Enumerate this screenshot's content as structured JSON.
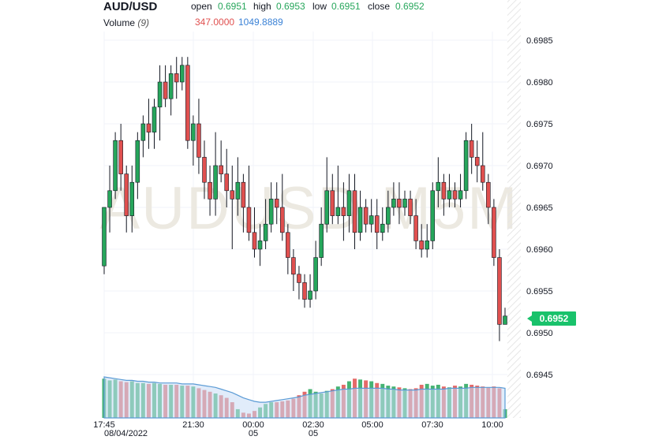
{
  "header": {
    "symbol": "AUD/USD",
    "open_label": "open",
    "open_value": "0.6951",
    "high_label": "high",
    "high_value": "0.6953",
    "low_label": "low",
    "low_value": "0.6951",
    "close_label": "close",
    "close_value": "0.6952",
    "volume_label": "Volume",
    "volume_period": "(9)",
    "volume_value": "347.0000",
    "volume_ma_value": "1049.8889"
  },
  "last_price_label": "0.6952",
  "watermark": "AUDUSD M5M",
  "colors": {
    "up": "#26a65b",
    "down": "#e0504f",
    "volume_ma": "#5b9bd5",
    "price_tag": "#19c26b"
  },
  "chart_data": {
    "type": "candlestick",
    "interval": "5m",
    "y_axis": {
      "position": "right",
      "range": [
        0.694,
        0.699
      ],
      "ticks": [
        "0.6985",
        "0.6980",
        "0.6975",
        "0.6970",
        "0.6965",
        "0.6960",
        "0.6955",
        "0.6950",
        "0.6945"
      ]
    },
    "x_axis": {
      "ticks": [
        {
          "label": "17:45",
          "sub": "08/04/2022"
        },
        {
          "label": "21:30",
          "sub": ""
        },
        {
          "label": "00:00",
          "sub": "05"
        },
        {
          "label": "02:30",
          "sub": "05"
        },
        {
          "label": "05:00",
          "sub": ""
        },
        {
          "label": "07:30",
          "sub": ""
        },
        {
          "label": "10:00",
          "sub": ""
        }
      ]
    },
    "grid": true,
    "candles": [
      [
        0.6958,
        0.6965,
        0.6965,
        0.6957
      ],
      [
        0.6965,
        0.6967,
        0.697,
        0.6962
      ],
      [
        0.6967,
        0.6973,
        0.6974,
        0.6966
      ],
      [
        0.6973,
        0.6969,
        0.6975,
        0.6967
      ],
      [
        0.6969,
        0.6964,
        0.697,
        0.6962
      ],
      [
        0.6964,
        0.6968,
        0.697,
        0.6962
      ],
      [
        0.6968,
        0.6973,
        0.6974,
        0.6966
      ],
      [
        0.6973,
        0.6975,
        0.6976,
        0.6971
      ],
      [
        0.6975,
        0.6974,
        0.6978,
        0.6972
      ],
      [
        0.6974,
        0.6977,
        0.6978,
        0.6972
      ],
      [
        0.6977,
        0.698,
        0.6982,
        0.6973
      ],
      [
        0.698,
        0.6978,
        0.6982,
        0.6977
      ],
      [
        0.6978,
        0.6981,
        0.6982,
        0.6976
      ],
      [
        0.6981,
        0.698,
        0.6983,
        0.6978
      ],
      [
        0.698,
        0.6982,
        0.6983,
        0.6979
      ],
      [
        0.6982,
        0.6973,
        0.6983,
        0.6972
      ],
      [
        0.6973,
        0.6975,
        0.6976,
        0.697
      ],
      [
        0.6975,
        0.6971,
        0.6978,
        0.6969
      ],
      [
        0.6971,
        0.6968,
        0.6973,
        0.6966
      ],
      [
        0.6968,
        0.6966,
        0.697,
        0.6964
      ],
      [
        0.6966,
        0.697,
        0.6974,
        0.6964
      ],
      [
        0.697,
        0.6969,
        0.6973,
        0.6968
      ],
      [
        0.6969,
        0.6967,
        0.6972,
        0.6965
      ],
      [
        0.6967,
        0.6966,
        0.697,
        0.696
      ],
      [
        0.6966,
        0.6968,
        0.6971,
        0.6964
      ],
      [
        0.6968,
        0.6965,
        0.6969,
        0.6962
      ],
      [
        0.6965,
        0.6962,
        0.697,
        0.6961
      ],
      [
        0.6962,
        0.696,
        0.6965,
        0.6959
      ],
      [
        0.696,
        0.6961,
        0.6963,
        0.6958
      ],
      [
        0.6961,
        0.6963,
        0.6966,
        0.696
      ],
      [
        0.6963,
        0.6966,
        0.6968,
        0.6962
      ],
      [
        0.6966,
        0.6965,
        0.6968,
        0.6963
      ],
      [
        0.6965,
        0.6962,
        0.6969,
        0.6961
      ],
      [
        0.6962,
        0.6959,
        0.6963,
        0.6957
      ],
      [
        0.6959,
        0.6957,
        0.696,
        0.6955
      ],
      [
        0.6957,
        0.6956,
        0.6958,
        0.6954
      ],
      [
        0.6956,
        0.6954,
        0.6957,
        0.6953
      ],
      [
        0.6954,
        0.6955,
        0.6957,
        0.6953
      ],
      [
        0.6955,
        0.6959,
        0.6961,
        0.6954
      ],
      [
        0.6959,
        0.6963,
        0.6965,
        0.6958
      ],
      [
        0.6963,
        0.6967,
        0.6971,
        0.6962
      ],
      [
        0.6967,
        0.6964,
        0.6969,
        0.6963
      ],
      [
        0.6964,
        0.6965,
        0.697,
        0.6963
      ],
      [
        0.6965,
        0.6964,
        0.6968,
        0.6961
      ],
      [
        0.6964,
        0.6967,
        0.6969,
        0.6962
      ],
      [
        0.6967,
        0.6962,
        0.6969,
        0.696
      ],
      [
        0.6962,
        0.6965,
        0.6967,
        0.6961
      ],
      [
        0.6965,
        0.6963,
        0.6966,
        0.6962
      ],
      [
        0.6963,
        0.6964,
        0.6966,
        0.6962
      ],
      [
        0.6964,
        0.6962,
        0.6966,
        0.696
      ],
      [
        0.6962,
        0.6963,
        0.6965,
        0.6961
      ],
      [
        0.6963,
        0.6965,
        0.6967,
        0.6962
      ],
      [
        0.6965,
        0.6966,
        0.6968,
        0.6964
      ],
      [
        0.6966,
        0.6965,
        0.6968,
        0.6963
      ],
      [
        0.6965,
        0.6966,
        0.6967,
        0.6964
      ],
      [
        0.6966,
        0.6964,
        0.6967,
        0.6963
      ],
      [
        0.6964,
        0.6961,
        0.6966,
        0.696
      ],
      [
        0.6961,
        0.696,
        0.6963,
        0.6959
      ],
      [
        0.696,
        0.6961,
        0.6963,
        0.6959
      ],
      [
        0.6961,
        0.6967,
        0.6968,
        0.696
      ],
      [
        0.6967,
        0.6968,
        0.6971,
        0.6965
      ],
      [
        0.6968,
        0.6966,
        0.6969,
        0.6964
      ],
      [
        0.6966,
        0.6967,
        0.6969,
        0.6965
      ],
      [
        0.6967,
        0.6966,
        0.6968,
        0.6965
      ],
      [
        0.6966,
        0.6967,
        0.6969,
        0.6965
      ],
      [
        0.6967,
        0.6973,
        0.6974,
        0.6966
      ],
      [
        0.6973,
        0.6971,
        0.6975,
        0.6969
      ],
      [
        0.6971,
        0.697,
        0.6973,
        0.6968
      ],
      [
        0.697,
        0.6968,
        0.6974,
        0.6967
      ],
      [
        0.6968,
        0.6965,
        0.6969,
        0.6963
      ],
      [
        0.6965,
        0.6959,
        0.6966,
        0.6958
      ],
      [
        0.6959,
        0.6951,
        0.696,
        0.6949
      ],
      [
        0.6951,
        0.6952,
        0.6953,
        0.6951
      ]
    ],
    "volume": [
      45,
      43,
      44,
      42,
      41,
      42,
      40,
      40,
      39,
      40,
      39,
      38,
      38,
      38,
      37,
      37,
      36,
      34,
      32,
      30,
      28,
      26,
      23,
      18,
      10,
      6,
      5,
      8,
      12,
      16,
      18,
      18,
      19,
      20,
      22,
      26,
      30,
      33,
      30,
      28,
      31,
      33,
      36,
      38,
      42,
      45,
      44,
      43,
      42,
      40,
      39,
      37,
      36,
      35,
      34,
      33,
      34,
      38,
      39,
      37,
      38,
      36,
      35,
      37,
      36,
      39,
      38,
      37,
      36,
      35,
      36,
      34,
      10
    ],
    "volume_colors": "mixed up/down",
    "volume_ma": [
      47,
      46,
      45,
      44,
      43,
      43,
      42,
      42,
      41,
      41,
      40,
      40,
      40,
      40,
      39,
      39,
      39,
      38,
      37,
      36,
      35,
      33,
      31,
      29,
      26,
      23,
      21,
      19,
      18,
      18,
      19,
      20,
      21,
      22,
      23,
      24,
      26,
      27,
      28,
      29,
      30,
      31,
      32,
      33,
      33,
      34,
      34,
      34,
      34,
      34,
      34,
      33,
      33,
      32,
      32,
      32,
      32,
      33,
      33,
      33,
      33,
      33,
      34,
      34,
      34,
      34,
      35,
      35,
      35,
      35,
      35,
      35,
      34
    ]
  }
}
